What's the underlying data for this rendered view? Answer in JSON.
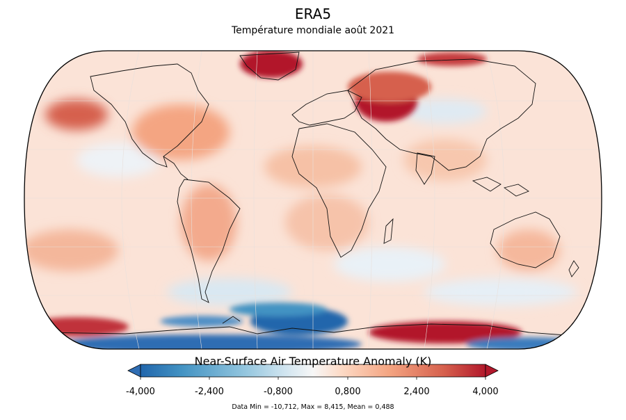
{
  "header": {
    "title": "ERA5",
    "subtitle": "Température mondiale août 2021"
  },
  "colorbar": {
    "label": "Near-Surface Air Temperature Anomaly (K)",
    "ticks": [
      "-4,000",
      "-2,400",
      "-0,800",
      "0,800",
      "2,400",
      "4,000"
    ],
    "colors": [
      "#2166ac",
      "#4393c3",
      "#92c5de",
      "#d1e5f0",
      "#f7f7f7",
      "#fddbc7",
      "#f4a582",
      "#d6604d",
      "#b2182b"
    ],
    "under_color": "#2f6db3",
    "over_color": "#b2182b"
  },
  "stats": {
    "text": "Data Min = -10,712, Max = 8,415, Mean = 0,488"
  },
  "map": {
    "projection": "Robinson-like ellipse",
    "background_color": "#fbe1d5",
    "anomalies": {
      "greenland": "#b2182b",
      "western_russia": "#b2182b",
      "east_antarctica": "#b2182b",
      "west_antarctica": "#2166ac",
      "north_pacific": "#d6604d"
    }
  }
}
